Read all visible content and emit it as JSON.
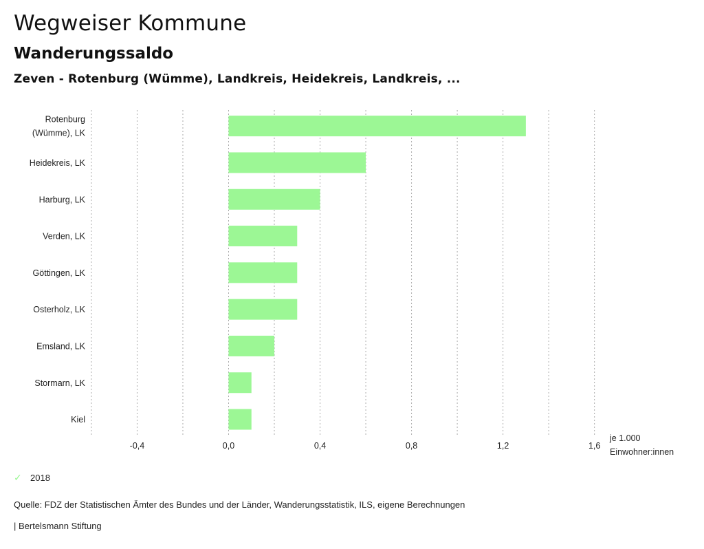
{
  "header": {
    "title": "Wegweiser Kommune",
    "subtitle": "Wanderungssaldo",
    "region": "Zeven - Rotenburg (Wümme), Landkreis, Heidekreis, Landkreis, ..."
  },
  "chart_data": {
    "type": "bar",
    "orientation": "horizontal",
    "title": "Wanderungssaldo",
    "categories": [
      [
        "Rotenburg",
        "(Wümme), LK"
      ],
      [
        "Heidekreis, LK"
      ],
      [
        "Harburg, LK"
      ],
      [
        "Verden, LK"
      ],
      [
        "Göttingen, LK"
      ],
      [
        "Osterholz, LK"
      ],
      [
        "Emsland, LK"
      ],
      [
        "Stormarn, LK"
      ],
      [
        "Kiel"
      ]
    ],
    "series": [
      {
        "name": "2018",
        "color": "#9cf795",
        "values": [
          1.3,
          0.6,
          0.4,
          0.3,
          0.3,
          0.3,
          0.2,
          0.1,
          0.1
        ]
      }
    ],
    "xlabel": [
      "je 1.000",
      "Einwohner:innen"
    ],
    "ylabel": "",
    "xlim": [
      -0.6,
      1.6
    ],
    "xticks": [
      -0.4,
      0.0,
      0.4,
      0.8,
      1.2,
      1.6
    ],
    "xtick_labels": [
      "-0,4",
      "0,0",
      "0,4",
      "0,8",
      "1,2",
      "1,6"
    ],
    "gridlines": [
      -0.6,
      -0.4,
      -0.2,
      0.0,
      0.2,
      0.4,
      0.6,
      0.8,
      1.0,
      1.2,
      1.4,
      1.6
    ],
    "grid": true,
    "legend_position": "bottom-left"
  },
  "legend": {
    "items": [
      {
        "label": "2018",
        "icon": "check-icon",
        "color": "#9cf795"
      }
    ]
  },
  "footer": {
    "source": "Quelle: FDZ der Statistischen Ämter des Bundes und der Länder, Wanderungsstatistik, ILS, eigene Berechnungen",
    "credit": "| Bertelsmann Stiftung"
  }
}
